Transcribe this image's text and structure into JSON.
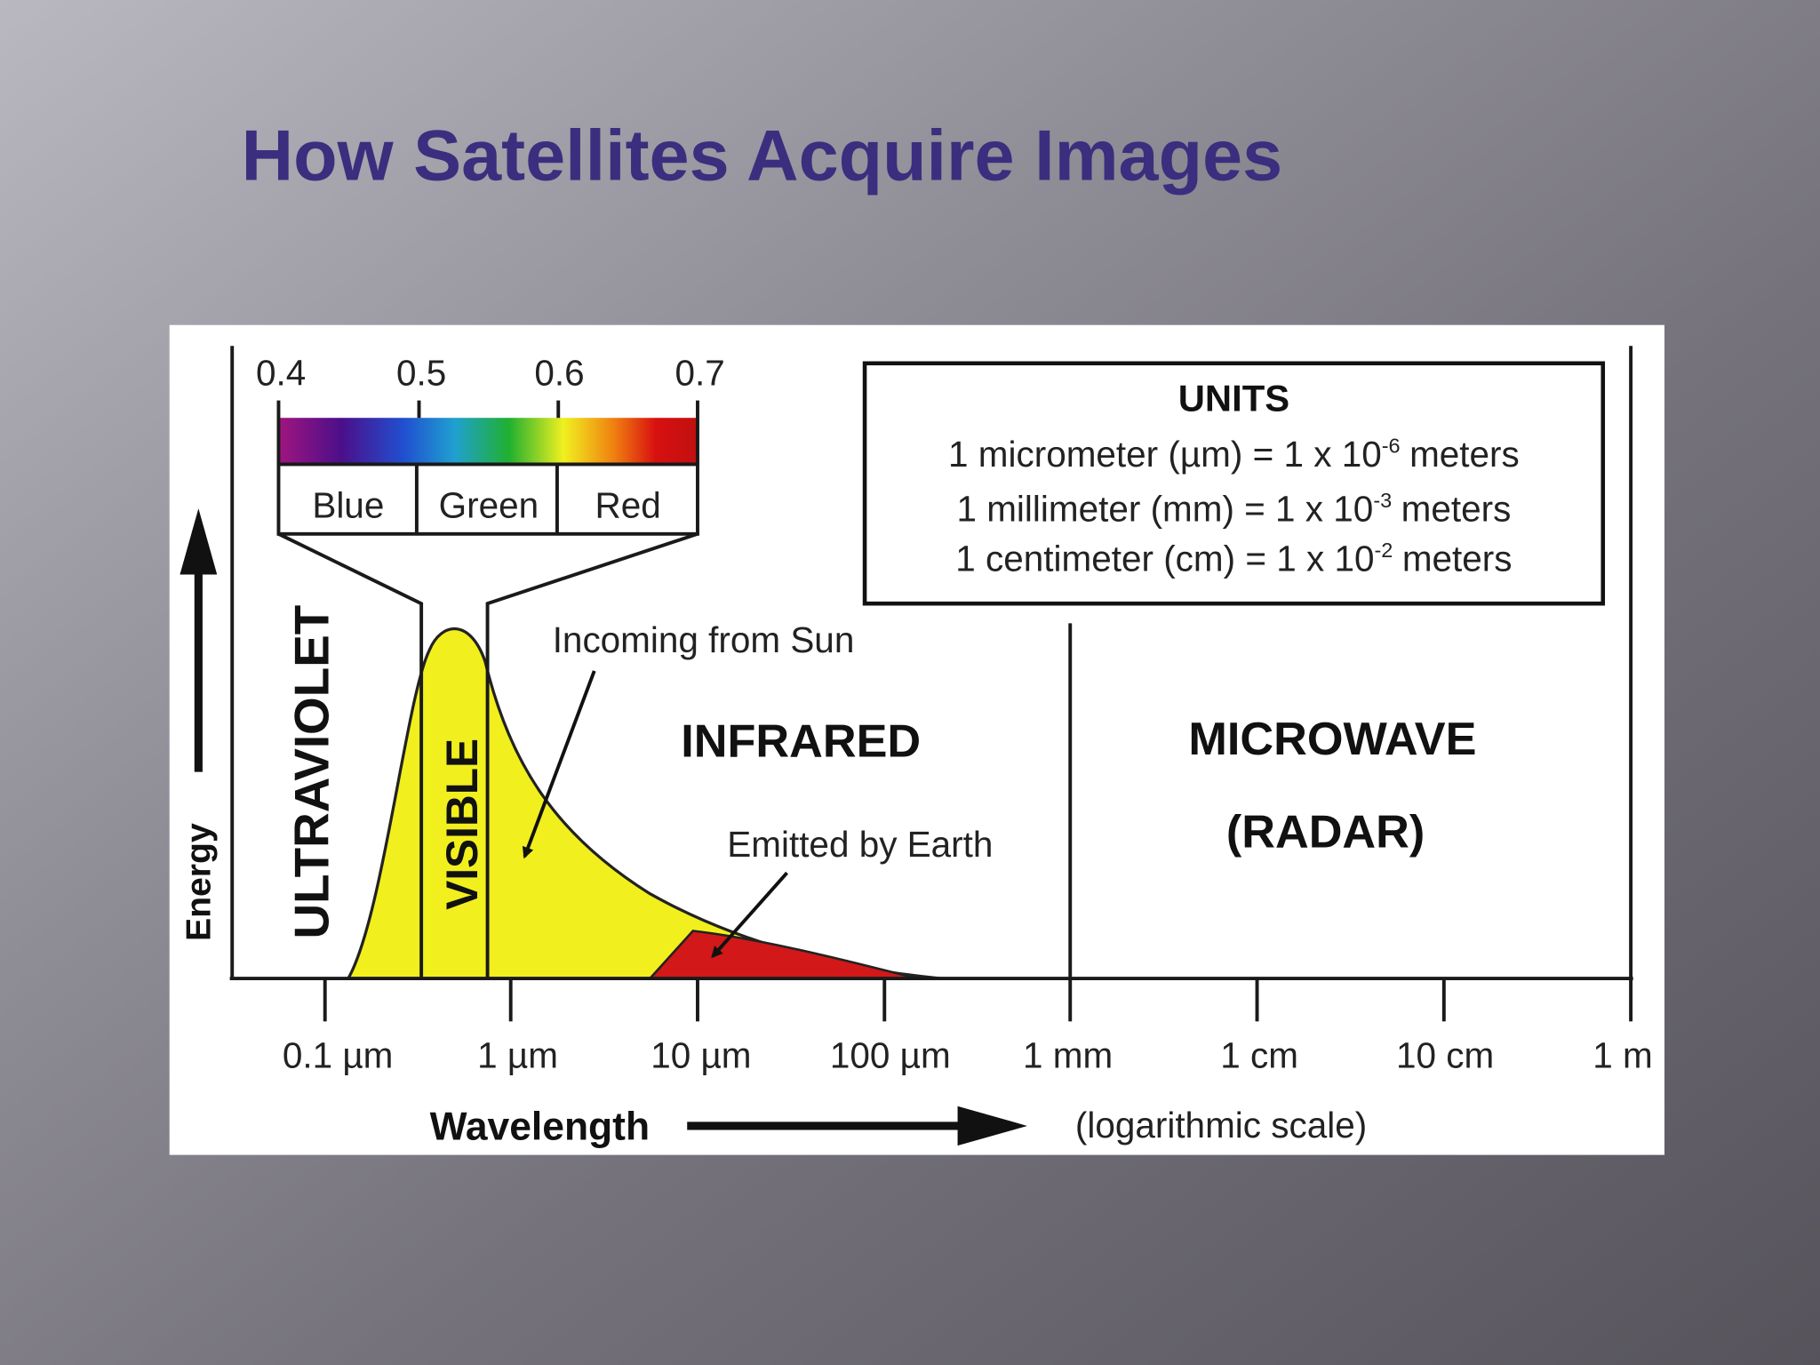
{
  "header": {
    "title": "How Satellites Acquire Images"
  },
  "diagram": {
    "visible_scale": {
      "ticks": [
        "0.4",
        "0.5",
        "0.6",
        "0.7"
      ],
      "bands": [
        "Blue",
        "Green",
        "Red"
      ]
    },
    "regions": {
      "ultraviolet": "ULTRAVIOLET",
      "visible": "VISIBLE",
      "infrared": "INFRARED",
      "microwave": "MICROWAVE",
      "radar": "(RADAR)"
    },
    "annotations": {
      "sun": "Incoming from Sun",
      "earth": "Emitted by Earth"
    },
    "units": {
      "title": "UNITS",
      "lines": [
        {
          "text": "1 micrometer (µm) = 1 x 10",
          "exponent": "-6",
          "unit": "meters"
        },
        {
          "text": "1 millimeter (mm) = 1 x 10",
          "exponent": "-3",
          "unit": "meters"
        },
        {
          "text": "1 centimeter (cm) = 1 x 10",
          "exponent": "-2",
          "unit": "meters"
        }
      ]
    },
    "y_axis": "Energy",
    "x_axis": {
      "label": "Wavelength",
      "note": "(logarithmic scale)",
      "ticks": [
        "0.1 µm",
        "1 µm",
        "10 µm",
        "100 µm",
        "1 mm",
        "1 cm",
        "10 cm",
        "1 m"
      ]
    }
  }
}
